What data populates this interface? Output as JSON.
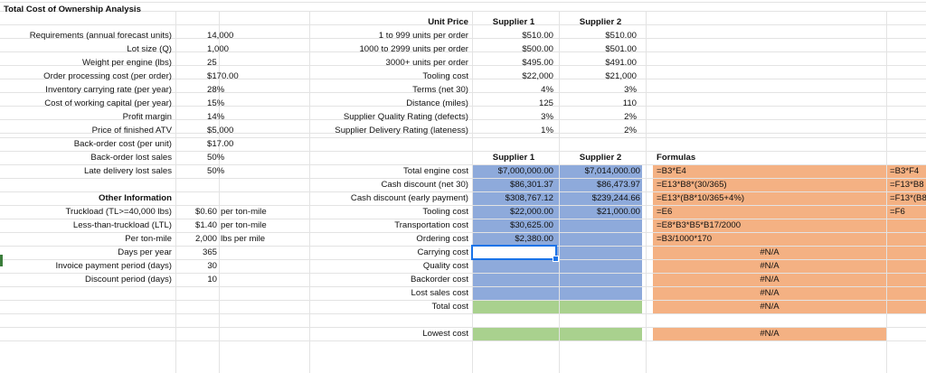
{
  "sheet": {
    "title": "Total Cost of Ownership Analysis",
    "inputs": [
      {
        "label": "Requirements (annual forecast units)",
        "value": "14,000",
        "unit": ""
      },
      {
        "label": "Lot size (Q)",
        "value": "1,000",
        "unit": ""
      },
      {
        "label": "Weight per engine (lbs)",
        "value": "25",
        "unit": ""
      },
      {
        "label": "Order processing cost (per order)",
        "value": "$170.00",
        "unit": ""
      },
      {
        "label": "Inventory carrying rate (per year)",
        "value": "28%",
        "unit": ""
      },
      {
        "label": "Cost of working capital (per year)",
        "value": "15%",
        "unit": ""
      },
      {
        "label": "Profit margin",
        "value": "14%",
        "unit": ""
      },
      {
        "label": "Price of finished ATV",
        "value": "$5,000",
        "unit": ""
      },
      {
        "label": "Back-order cost (per unit)",
        "value": "$17.00",
        "unit": ""
      },
      {
        "label": "Back-order lost sales",
        "value": "50%",
        "unit": ""
      },
      {
        "label": "Late delivery lost sales",
        "value": "50%",
        "unit": ""
      }
    ],
    "other_header": "Other Information",
    "other": [
      {
        "label": "Truckload (TL>=40,000 lbs)",
        "value": "$0.60",
        "unit": "per ton-mile"
      },
      {
        "label": "Less-than-truckload (LTL)",
        "value": "$1.40",
        "unit": "per ton-mile"
      },
      {
        "label": "Per ton-mile",
        "value": "2,000",
        "unit": "lbs per mile"
      },
      {
        "label": "Days per year",
        "value": "365",
        "unit": ""
      },
      {
        "label": "Invoice payment period (days)",
        "value": "30",
        "unit": ""
      },
      {
        "label": "Discount period (days)",
        "value": "10",
        "unit": ""
      }
    ],
    "suppliers": {
      "s1": "Supplier 1",
      "s2": "Supplier 2"
    },
    "unit_price_header": "Unit Price",
    "price_rows": [
      {
        "label": "1 to 999 units per order",
        "s1": "$510.00",
        "s2": "$510.00"
      },
      {
        "label": "1000 to 2999 units per order",
        "s1": "$500.00",
        "s2": "$501.00"
      },
      {
        "label": "3000+ units per order",
        "s1": "$495.00",
        "s2": "$491.00"
      },
      {
        "label": "Tooling cost",
        "s1": "$22,000",
        "s2": "$21,000"
      },
      {
        "label": "Terms (net 30)",
        "s1": "4%",
        "s2": "3%"
      },
      {
        "label": "Distance (miles)",
        "s1": "125",
        "s2": "110"
      },
      {
        "label": "Supplier Quality Rating (defects)",
        "s1": "3%",
        "s2": "2%"
      },
      {
        "label": "Supplier Delivery Rating (lateness)",
        "s1": "1%",
        "s2": "2%"
      }
    ],
    "cost_rows": [
      {
        "label": "Total engine cost",
        "s1": "$7,000,000.00",
        "s2": "$7,014,000.00",
        "f1": "=B3*E4",
        "f2": "",
        "fr": "=B3*F4"
      },
      {
        "label": "Cash discount (net 30)",
        "s1": "$86,301.37",
        "s2": "$86,473.97",
        "f1": "=E13*B8*(30/365)",
        "f2": "",
        "fr": "=F13*B8"
      },
      {
        "label": "Cash discount (early payment)",
        "s1": "$308,767.12",
        "s2": "$239,244.66",
        "f1": "=E13*(B8*10/365+4%)",
        "f2": "",
        "fr": "=F13*(B8"
      },
      {
        "label": "Tooling cost",
        "s1": "$22,000.00",
        "s2": "$21,000.00",
        "f1": "=E6",
        "f2": "",
        "fr": "=F6"
      },
      {
        "label": "Transportation cost",
        "s1": "$30,625.00",
        "s2": "",
        "f1": "=E8*B3*B5*B17/2000",
        "f2": "",
        "fr": ""
      },
      {
        "label": "Ordering cost",
        "s1": "$2,380.00",
        "s2": "",
        "f1": "=B3/1000*170",
        "f2": "",
        "fr": ""
      },
      {
        "label": "Carrying cost",
        "s1": "",
        "s2": "",
        "f1": "",
        "f2": "#N/A",
        "fr": ""
      },
      {
        "label": "Quality cost",
        "s1": "",
        "s2": "",
        "f1": "",
        "f2": "#N/A",
        "fr": ""
      },
      {
        "label": "Backorder cost",
        "s1": "",
        "s2": "",
        "f1": "",
        "f2": "#N/A",
        "fr": ""
      },
      {
        "label": "Lost sales cost",
        "s1": "",
        "s2": "",
        "f1": "",
        "f2": "#N/A",
        "fr": ""
      },
      {
        "label": "Total cost",
        "s1": "",
        "s2": "",
        "f1": "",
        "f2": "#N/A",
        "fr": ""
      }
    ],
    "formulas_header": "Formulas",
    "lowest_label": "Lowest cost",
    "lowest_formula": "#N/A",
    "colors": {
      "blue": "#8eaadb",
      "green": "#a9d18e",
      "orange": "#f4b183",
      "select": "#1a73e8"
    }
  }
}
